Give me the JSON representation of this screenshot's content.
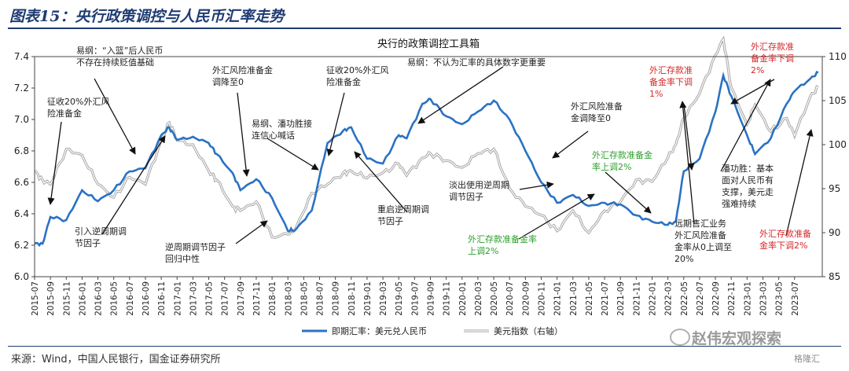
{
  "figure_title": "图表15：央行政策调控与人民币汇率走势",
  "source_note": "来源：Wind，中国人民银行，国金证券研究所",
  "watermark": "赵伟宏观探索",
  "watermark_small": "格隆汇",
  "chart_data": {
    "type": "line",
    "title": "央行的政策调控工具箱",
    "x_ticks": [
      "2015-07",
      "2015-09",
      "2015-11",
      "2016-01",
      "2016-03",
      "2016-05",
      "2016-07",
      "2016-09",
      "2016-11",
      "2017-01",
      "2017-03",
      "2017-05",
      "2017-07",
      "2017-09",
      "2017-11",
      "2018-01",
      "2018-03",
      "2018-05",
      "2018-07",
      "2018-09",
      "2018-11",
      "2019-01",
      "2019-03",
      "2019-05",
      "2019-07",
      "2019-09",
      "2019-11",
      "2020-01",
      "2020-03",
      "2020-05",
      "2020-07",
      "2020-09",
      "2020-11",
      "2021-01",
      "2021-03",
      "2021-05",
      "2021-07",
      "2021-09",
      "2021-11",
      "2022-01",
      "2022-03",
      "2022-05",
      "2022-07",
      "2022-09",
      "2022-11",
      "2023-01",
      "2023-03",
      "2023-05",
      "2023-07"
    ],
    "y_left": {
      "min": 6.0,
      "max": 7.4,
      "ticks": [
        "6.0",
        "6.2",
        "6.4",
        "6.6",
        "6.8",
        "7.0",
        "7.2",
        "7.4"
      ]
    },
    "y_right": {
      "min": 85,
      "max": 110,
      "ticks": [
        "85",
        "90",
        "95",
        "100",
        "105",
        "110"
      ]
    },
    "series": [
      {
        "name": "即期汇率：美元兑人民币",
        "axis": "left",
        "color": "#2a72c4",
        "x": [
          "2015-07",
          "2015-08",
          "2015-09",
          "2015-11",
          "2016-01",
          "2016-03",
          "2016-05",
          "2016-07",
          "2016-09",
          "2016-11",
          "2016-12",
          "2017-01",
          "2017-03",
          "2017-05",
          "2017-06",
          "2017-08",
          "2017-09",
          "2017-11",
          "2018-01",
          "2018-03",
          "2018-04",
          "2018-06",
          "2018-08",
          "2018-10",
          "2018-11",
          "2019-01",
          "2019-03",
          "2019-05",
          "2019-06",
          "2019-08",
          "2019-09",
          "2019-11",
          "2020-01",
          "2020-03",
          "2020-05",
          "2020-07",
          "2020-09",
          "2020-11",
          "2021-01",
          "2021-03",
          "2021-05",
          "2021-07",
          "2021-09",
          "2021-11",
          "2022-01",
          "2022-03",
          "2022-04",
          "2022-05",
          "2022-07",
          "2022-09",
          "2022-10",
          "2022-11",
          "2023-01",
          "2023-02",
          "2023-04",
          "2023-06",
          "2023-07",
          "2023-09",
          "2023-10"
        ],
        "y": [
          6.21,
          6.21,
          6.38,
          6.36,
          6.55,
          6.48,
          6.55,
          6.67,
          6.69,
          6.9,
          6.95,
          6.87,
          6.89,
          6.85,
          6.78,
          6.66,
          6.55,
          6.62,
          6.5,
          6.29,
          6.3,
          6.42,
          6.85,
          6.93,
          6.95,
          6.75,
          6.72,
          6.9,
          6.88,
          7.1,
          7.13,
          7.02,
          6.97,
          7.05,
          7.12,
          7.0,
          6.8,
          6.6,
          6.47,
          6.52,
          6.45,
          6.47,
          6.46,
          6.39,
          6.35,
          6.33,
          6.35,
          6.67,
          6.75,
          7.05,
          7.28,
          7.15,
          6.9,
          6.78,
          6.88,
          7.1,
          7.18,
          7.26,
          7.3
        ]
      },
      {
        "name": "美元指数（右轴）",
        "axis": "right",
        "color": "#a6a6a6",
        "x": [
          "2015-07",
          "2015-08",
          "2015-09",
          "2015-11",
          "2016-01",
          "2016-03",
          "2016-05",
          "2016-07",
          "2016-09",
          "2016-11",
          "2016-12",
          "2017-01",
          "2017-03",
          "2017-05",
          "2017-06",
          "2017-08",
          "2017-09",
          "2017-11",
          "2018-01",
          "2018-03",
          "2018-04",
          "2018-06",
          "2018-08",
          "2018-10",
          "2018-11",
          "2019-01",
          "2019-03",
          "2019-05",
          "2019-06",
          "2019-08",
          "2019-09",
          "2019-11",
          "2020-01",
          "2020-03",
          "2020-05",
          "2020-07",
          "2020-09",
          "2020-11",
          "2021-01",
          "2021-03",
          "2021-05",
          "2021-07",
          "2021-09",
          "2021-11",
          "2022-01",
          "2022-03",
          "2022-04",
          "2022-05",
          "2022-07",
          "2022-09",
          "2022-10",
          "2022-11",
          "2023-01",
          "2023-02",
          "2023-04",
          "2023-06",
          "2023-07",
          "2023-09",
          "2023-10"
        ],
        "y": [
          97,
          96,
          95.5,
          99.5,
          98.8,
          95.5,
          94,
          96.3,
          95.5,
          100.5,
          102.5,
          100.5,
          100,
          97,
          96,
          93,
          92.5,
          93.5,
          89.5,
          89.8,
          90.5,
          94.5,
          95.5,
          96.8,
          97,
          96.2,
          96.8,
          97.8,
          96.5,
          98.5,
          99,
          98.2,
          97.4,
          99,
          99.5,
          95,
          93,
          92,
          90.2,
          92.5,
          90,
          92.5,
          93.5,
          96,
          95.8,
          98.5,
          100,
          103,
          105.8,
          110.2,
          112,
          106.5,
          102.3,
          104.5,
          101.5,
          103,
          101,
          105.5,
          106.5
        ]
      }
    ],
    "annotations": [
      {
        "id": "a1",
        "text": [
          "易纲：“入篮”后人民币",
          "不存在持续贬值基础"
        ],
        "color": "#222222"
      },
      {
        "id": "a2",
        "text": [
          "征收20%外汇风",
          "险准备金"
        ],
        "color": "#222222"
      },
      {
        "id": "a3",
        "text": [
          "外汇风险准备金",
          "调降至0"
        ],
        "color": "#222222"
      },
      {
        "id": "a4",
        "text": [
          "征收20%外汇风",
          "险准备金"
        ],
        "color": "#222222"
      },
      {
        "id": "a5",
        "text": [
          "易纲：不认为汇率的具体数字更重要"
        ],
        "color": "#222222"
      },
      {
        "id": "a6",
        "text": [
          "易纲、潘功胜接",
          "连信心喊话"
        ],
        "color": "#222222"
      },
      {
        "id": "a7",
        "text": [
          "外汇风险准备",
          "金调降至0"
        ],
        "color": "#222222"
      },
      {
        "id": "a8",
        "text": [
          "外汇存款准",
          "备金率下调",
          "1%"
        ],
        "color": "#d62728"
      },
      {
        "id": "a9",
        "text": [
          "外汇存款准",
          "备金率下调",
          "2%"
        ],
        "color": "#d62728"
      },
      {
        "id": "a10",
        "text": [
          "外汇存款准备金",
          "率上调2%"
        ],
        "color": "#2ca02c"
      },
      {
        "id": "a11",
        "text": [
          "潘功胜：基本",
          "面对人民币有",
          "支撑，美元走",
          "强难持续"
        ],
        "color": "#222222"
      },
      {
        "id": "a12",
        "text": [
          "淡出使用逆周期",
          "调节因子"
        ],
        "color": "#222222"
      },
      {
        "id": "a13",
        "text": [
          "重启逆周期调",
          "节因子"
        ],
        "color": "#222222"
      },
      {
        "id": "a14",
        "text": [
          "引入逆周期调",
          "节因子"
        ],
        "color": "#222222"
      },
      {
        "id": "a15",
        "text": [
          "逆周期调节因子",
          "回归中性"
        ],
        "color": "#222222"
      },
      {
        "id": "a16",
        "text": [
          "外汇存款准备金率",
          "上调2%"
        ],
        "color": "#2ca02c"
      },
      {
        "id": "a17",
        "text": [
          "远期售汇业务",
          "外汇风险准备",
          "金率从0上调至",
          "20%"
        ],
        "color": "#222222"
      },
      {
        "id": "a18",
        "text": [
          "外汇存款准备",
          "金率下调2%"
        ],
        "color": "#d62728"
      }
    ]
  }
}
